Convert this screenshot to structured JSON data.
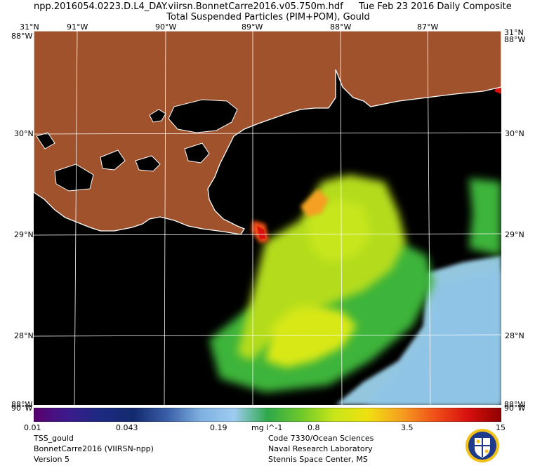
{
  "header": {
    "line1_left": "npp.2016054.0223.D.L4_DAY.viirsn.BonnetCarre2016.v05.750m.hdf",
    "line1_right": "Tue Feb 23 2016 Daily Composite",
    "line2": "Total Suspended Particles (PIM+POM), Gould"
  },
  "map": {
    "top_lon_labels": [
      "31°N",
      "91°W",
      "90°W",
      "89°W",
      "88°W",
      "87°W"
    ],
    "corner_top_right": "31°N",
    "left_lat_labels": [
      "88°W",
      "30°N",
      "29°N",
      "28°N",
      "88°W"
    ],
    "right_lat_labels": [
      "88°W",
      "30°N",
      "29°N",
      "28°N",
      "88°W"
    ],
    "bottom_lat_labels": [
      "90°W",
      "90°W"
    ],
    "colors": {
      "land": "#a0522d",
      "water_nodata": "#000000",
      "coastline": "#ffffff",
      "gridline": "#ffffff"
    }
  },
  "colorbar": {
    "tick_labels": [
      "0.01",
      "0.043",
      "0.19",
      "mg l^-1",
      "0.8",
      "3.5",
      "15"
    ],
    "scale": "log",
    "range": [
      0.01,
      15
    ],
    "colors": [
      "#5a006e",
      "#3c1a8c",
      "#1c2a80",
      "#142a6e",
      "#3a5fa8",
      "#7fb0e0",
      "#9ecbf0",
      "#2ea84a",
      "#6cc82a",
      "#c8e61a",
      "#f0e010",
      "#f5a020",
      "#f05018",
      "#d81010",
      "#900000"
    ]
  },
  "footer": {
    "left": [
      "TSS_gould",
      "BonnetCarre2016 (VIIRSN-npp)",
      "Version 5"
    ],
    "right": [
      "Code 7330/Ocean Sciences",
      "Naval Research Laboratory",
      "Stennis Space Center, MS"
    ]
  }
}
